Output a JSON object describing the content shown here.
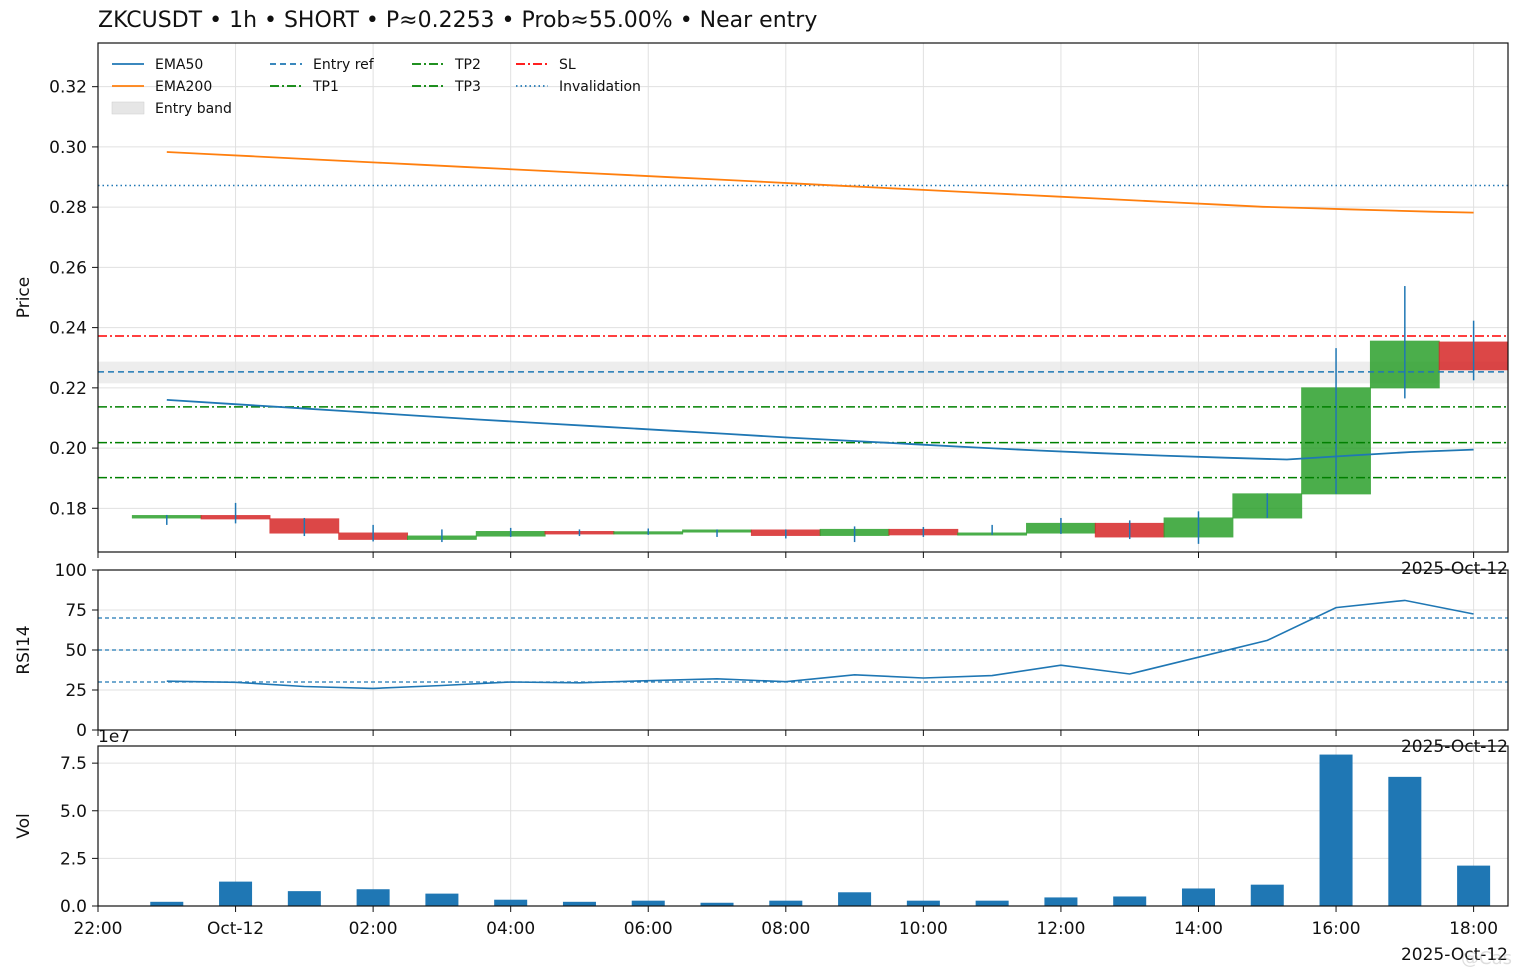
{
  "title": "ZKCUSDT • 1h • SHORT • P≈0.2253 • Prob≈55.00% • Near entry",
  "watermark": "@Cas",
  "colors": {
    "up": "#2ca02c",
    "down": "#d62728",
    "ema50": "#1f77b4",
    "ema200": "#ff7f0e",
    "entry": "#1f77b4",
    "tp": "#008000",
    "sl": "#ff0000",
    "invalidation": "#1f77b4",
    "band": "#e6e6e6",
    "volume": "#1f77b4",
    "rsi": "#1f77b4",
    "grid": "#e0e0e0"
  },
  "chart_data": [
    {
      "type": "candlestick",
      "ylabel": "Price",
      "ylim": [
        0.1655,
        0.3345
      ],
      "yticks": [
        "0.18",
        "0.20",
        "0.22",
        "0.24",
        "0.26",
        "0.28",
        "0.30",
        "0.32"
      ],
      "date_label": "2025-Oct-12",
      "legend": [
        "EMA50",
        "EMA200",
        "Entry band",
        "Entry ref",
        "TP1",
        "TP2",
        "TP3",
        "SL",
        "Invalidation"
      ],
      "legend_position": "upper-left",
      "grid": true,
      "levels": {
        "entry_ref": 0.2253,
        "entry_band": [
          0.2215,
          0.2287
        ],
        "tp1": 0.2137,
        "tp2": 0.2018,
        "tp3": 0.1902,
        "sl": 0.2372,
        "invalidation": 0.2872
      },
      "candles": [
        {
          "t": "23:00",
          "o": 0.1768,
          "h": 0.1778,
          "l": 0.1745,
          "c": 0.1776
        },
        {
          "t": "00:00",
          "o": 0.1776,
          "h": 0.1818,
          "l": 0.175,
          "c": 0.1765
        },
        {
          "t": "01:00",
          "o": 0.1765,
          "h": 0.1768,
          "l": 0.1708,
          "c": 0.1718
        },
        {
          "t": "02:00",
          "o": 0.1718,
          "h": 0.1745,
          "l": 0.169,
          "c": 0.1697
        },
        {
          "t": "03:00",
          "o": 0.1697,
          "h": 0.173,
          "l": 0.1688,
          "c": 0.1708
        },
        {
          "t": "04:00",
          "o": 0.1708,
          "h": 0.1735,
          "l": 0.1705,
          "c": 0.1723
        },
        {
          "t": "05:00",
          "o": 0.1723,
          "h": 0.173,
          "l": 0.1708,
          "c": 0.1715
        },
        {
          "t": "06:00",
          "o": 0.1715,
          "h": 0.1733,
          "l": 0.1712,
          "c": 0.1722
        },
        {
          "t": "07:00",
          "o": 0.1722,
          "h": 0.173,
          "l": 0.1705,
          "c": 0.1728
        },
        {
          "t": "08:00",
          "o": 0.1728,
          "h": 0.173,
          "l": 0.17,
          "c": 0.171
        },
        {
          "t": "09:00",
          "o": 0.171,
          "h": 0.174,
          "l": 0.1688,
          "c": 0.173
        },
        {
          "t": "10:00",
          "o": 0.173,
          "h": 0.1738,
          "l": 0.1705,
          "c": 0.1712
        },
        {
          "t": "11:00",
          "o": 0.1712,
          "h": 0.1745,
          "l": 0.1712,
          "c": 0.1718
        },
        {
          "t": "12:00",
          "o": 0.1718,
          "h": 0.1768,
          "l": 0.1715,
          "c": 0.175
        },
        {
          "t": "13:00",
          "o": 0.175,
          "h": 0.176,
          "l": 0.1698,
          "c": 0.1705
        },
        {
          "t": "14:00",
          "o": 0.1705,
          "h": 0.179,
          "l": 0.1682,
          "c": 0.1768
        },
        {
          "t": "15:00",
          "o": 0.1768,
          "h": 0.185,
          "l": 0.1768,
          "c": 0.1848
        },
        {
          "t": "16:00",
          "o": 0.1848,
          "h": 0.2332,
          "l": 0.1848,
          "c": 0.22
        },
        {
          "t": "17:00",
          "o": 0.22,
          "h": 0.2538,
          "l": 0.2165,
          "c": 0.2355
        },
        {
          "t": "18:00",
          "o": 0.2352,
          "h": 0.2423,
          "l": 0.2225,
          "c": 0.226
        }
      ],
      "ema50": [
        0.216,
        0.2147,
        0.2134,
        0.2121,
        0.2108,
        0.2095,
        0.2083,
        0.2071,
        0.2059,
        0.2047,
        0.2035,
        0.2024,
        0.2013,
        0.2002,
        0.1992,
        0.1983,
        0.1975,
        0.1968,
        0.1962,
        0.1975,
        0.1987,
        0.1995
      ],
      "ema200": [
        0.2983,
        0.2976,
        0.2969,
        0.2962,
        0.2955,
        0.2948,
        0.2941,
        0.2934,
        0.2927,
        0.292,
        0.2913,
        0.2906,
        0.2899,
        0.2892,
        0.2885,
        0.2878,
        0.2871,
        0.2864,
        0.2857,
        0.285,
        0.2843,
        0.2836,
        0.2829,
        0.2822,
        0.2815,
        0.2808,
        0.2801,
        0.2797,
        0.2793,
        0.2789,
        0.2785,
        0.2782
      ]
    },
    {
      "type": "line",
      "ylabel": "RSI14",
      "ylim": [
        0,
        100
      ],
      "yticks": [
        "0",
        "25",
        "50",
        "75",
        "100"
      ],
      "date_label": "2025-Oct-12",
      "reference_lines": [
        70,
        50,
        30
      ],
      "grid": true,
      "x": [
        "23:00",
        "00:00",
        "01:00",
        "02:00",
        "03:00",
        "04:00",
        "05:00",
        "06:00",
        "07:00",
        "08:00",
        "09:00",
        "10:00",
        "11:00",
        "12:00",
        "13:00",
        "14:00",
        "15:00",
        "16:00",
        "17:00",
        "18:00"
      ],
      "values": [
        30.5,
        29.8,
        27.2,
        26.0,
        27.8,
        30.0,
        29.5,
        30.8,
        32.0,
        30.2,
        34.5,
        32.5,
        34.0,
        40.5,
        35.0,
        45.5,
        56.0,
        76.5,
        81.0,
        72.5
      ]
    },
    {
      "type": "bar",
      "ylabel": "Vol",
      "scale_label": "1e7",
      "ylim": [
        0,
        8.4
      ],
      "yticks": [
        "0.0",
        "2.5",
        "5.0",
        "7.5"
      ],
      "date_label": "2025-Oct-12",
      "grid": true,
      "x": [
        "23:00",
        "00:00",
        "01:00",
        "02:00",
        "03:00",
        "04:00",
        "05:00",
        "06:00",
        "07:00",
        "08:00",
        "09:00",
        "10:00",
        "11:00",
        "12:00",
        "13:00",
        "14:00",
        "15:00",
        "16:00",
        "17:00",
        "18:00"
      ],
      "values": [
        0.22,
        1.28,
        0.78,
        0.88,
        0.65,
        0.33,
        0.22,
        0.28,
        0.17,
        0.28,
        0.72,
        0.28,
        0.28,
        0.45,
        0.5,
        0.92,
        1.12,
        7.95,
        6.78,
        2.12
      ]
    }
  ],
  "x_axis": {
    "range": [
      "22:00",
      "18:30"
    ],
    "tick_labels": [
      "22:00",
      "Oct-12",
      "02:00",
      "04:00",
      "06:00",
      "08:00",
      "10:00",
      "12:00",
      "14:00",
      "16:00",
      "18:00"
    ]
  }
}
